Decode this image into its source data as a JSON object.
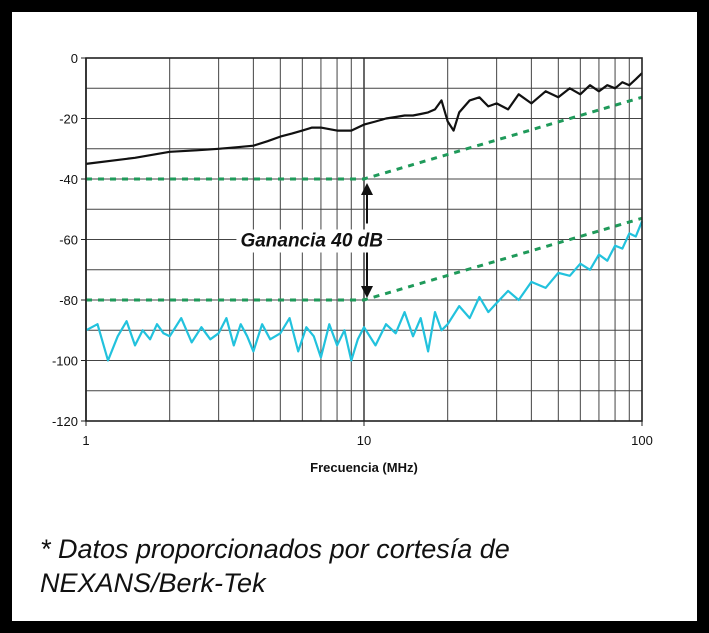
{
  "chart_data": {
    "type": "line",
    "xlabel": "Frecuencia (MHz)",
    "ylabel": "",
    "x_scale": "log",
    "xlim": [
      1,
      100
    ],
    "ylim": [
      -120,
      0
    ],
    "x_ticks": [
      "1",
      "10",
      "100"
    ],
    "y_ticks": [
      "0",
      "-20",
      "-40",
      "-60",
      "-80",
      "-100",
      "-120"
    ],
    "grid": true,
    "annotations": [
      {
        "text": "Ganancia 40 dB",
        "x": 10,
        "y_from": -40,
        "y_to": -80
      }
    ],
    "series": [
      {
        "style": "solid",
        "color": "#111111",
        "x": [
          1,
          1.5,
          2,
          2.5,
          3,
          3.5,
          4,
          4.5,
          5,
          5.5,
          6,
          6.5,
          7,
          8,
          9,
          10,
          11,
          12,
          13,
          14,
          15,
          16,
          17,
          18,
          19,
          20,
          21,
          22,
          24,
          26,
          28,
          30,
          33,
          36,
          40,
          45,
          50,
          55,
          60,
          65,
          70,
          75,
          80,
          85,
          90,
          95,
          100
        ],
        "values": [
          -35,
          -33,
          -31,
          -30.5,
          -30,
          -29.5,
          -29,
          -27.5,
          -26,
          -25,
          -24,
          -23,
          -23,
          -24,
          -24,
          -22,
          -21,
          -20,
          -19.5,
          -19,
          -19,
          -18.5,
          -18,
          -17,
          -14,
          -21,
          -24,
          -18,
          -14,
          -13,
          -16,
          -15,
          -17,
          -12,
          -15,
          -11,
          -13,
          -10,
          -12,
          -9,
          -11,
          -9,
          -10,
          -8,
          -9,
          -7,
          -5
        ]
      },
      {
        "style": "solid",
        "color": "#22c2dd",
        "x": [
          1,
          1.1,
          1.2,
          1.3,
          1.4,
          1.5,
          1.6,
          1.7,
          1.8,
          1.9,
          2,
          2.2,
          2.4,
          2.6,
          2.8,
          3,
          3.2,
          3.4,
          3.6,
          3.8,
          4,
          4.3,
          4.6,
          5,
          5.4,
          5.8,
          6.2,
          6.6,
          7,
          7.5,
          8,
          8.5,
          9,
          9.5,
          10,
          11,
          12,
          13,
          14,
          15,
          16,
          17,
          18,
          19,
          20,
          22,
          24,
          26,
          28,
          30,
          33,
          36,
          40,
          45,
          50,
          55,
          60,
          65,
          70,
          75,
          80,
          85,
          90,
          95,
          100
        ],
        "values": [
          -90,
          -88,
          -100,
          -92,
          -87,
          -95,
          -90,
          -93,
          -88,
          -91,
          -92,
          -86,
          -94,
          -89,
          -93,
          -91,
          -86,
          -95,
          -88,
          -92,
          -97,
          -88,
          -93,
          -91,
          -86,
          -97,
          -89,
          -92,
          -99,
          -88,
          -95,
          -90,
          -100,
          -93,
          -89,
          -95,
          -88,
          -91,
          -84,
          -92,
          -86,
          -97,
          -84,
          -90,
          -88,
          -82,
          -86,
          -79,
          -84,
          -81,
          -77,
          -80,
          -74,
          -76,
          -71,
          -72,
          -68,
          -70,
          -65,
          -67,
          -62,
          -63,
          -58,
          -59,
          -54
        ]
      },
      {
        "style": "dashed",
        "color": "#1f9a5a",
        "x": [
          1,
          10,
          100
        ],
        "values": [
          -40,
          -40,
          -13
        ]
      },
      {
        "style": "dashed",
        "color": "#1f9a5a",
        "x": [
          1,
          10,
          100
        ],
        "values": [
          -80,
          -80,
          -53
        ]
      }
    ]
  },
  "footnote": {
    "line1": "* Datos proporcionados por cortesía de",
    "line2": "NEXANS/Berk-Tek"
  }
}
